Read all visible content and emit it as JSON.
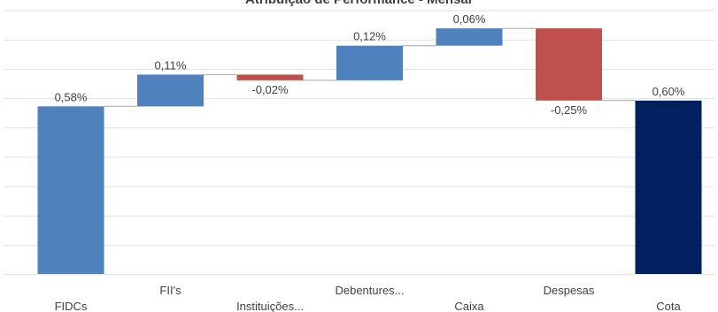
{
  "chart_data": {
    "type": "bar",
    "subtype": "waterfall",
    "title": "Atribuição de Performance - Mensal",
    "xlabel": "",
    "ylabel": "",
    "ylim": [
      0,
      0.85
    ],
    "grid": true,
    "categories": [
      "FIDCs",
      "FII's",
      "Instituições...",
      "Debentures...",
      "Caixa",
      "Despesas",
      "Cota"
    ],
    "values": [
      0.58,
      0.11,
      -0.02,
      0.12,
      0.06,
      -0.25,
      0.6
    ],
    "data_labels": [
      "0,58%",
      "0,11%",
      "-0,02%",
      "0,12%",
      "0,06%",
      "-0,25%",
      "0,60%"
    ],
    "bar_kinds": [
      "total",
      "increase",
      "decrease",
      "increase",
      "increase",
      "decrease",
      "total"
    ],
    "colors": {
      "increase": "#4f81bd",
      "decrease": "#c0504d",
      "first_total": "#4f81bd",
      "final_total": "#002060",
      "grid": "#e0e0e0",
      "connector": "#a6a6a6"
    }
  }
}
